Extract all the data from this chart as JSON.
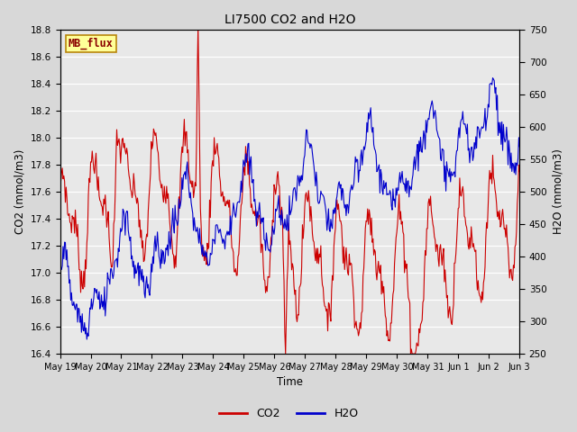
{
  "title": "LI7500 CO2 and H2O",
  "xlabel": "Time",
  "ylabel_left": "CO2 (mmol/m3)",
  "ylabel_right": "H2O (mmol/m3)",
  "ylim_left": [
    16.4,
    18.8
  ],
  "ylim_right": [
    250,
    750
  ],
  "yticks_left": [
    16.4,
    16.6,
    16.8,
    17.0,
    17.2,
    17.4,
    17.6,
    17.8,
    18.0,
    18.2,
    18.4,
    18.6,
    18.8
  ],
  "yticks_right": [
    250,
    300,
    350,
    400,
    450,
    500,
    550,
    600,
    650,
    700,
    750
  ],
  "co2_color": "#cc0000",
  "h2o_color": "#0000cc",
  "fig_bg_color": "#d8d8d8",
  "plot_bg_color": "#e8e8e8",
  "grid_color": "#ffffff",
  "legend_label_co2": "CO2",
  "legend_label_h2o": "H2O",
  "watermark_text": "MB_flux",
  "watermark_fgcolor": "#8b0000",
  "watermark_bgcolor": "#ffff99",
  "watermark_edgecolor": "#b8860b",
  "x_tick_labels": [
    "May 19",
    "May 20",
    "May 21",
    "May 22",
    "May 23",
    "May 24",
    "May 25",
    "May 26",
    "May 27",
    "May 28",
    "May 29",
    "May 30",
    "May 31",
    "Jun 1",
    "Jun 2",
    "Jun 3"
  ],
  "num_points": 600,
  "seed": 7
}
